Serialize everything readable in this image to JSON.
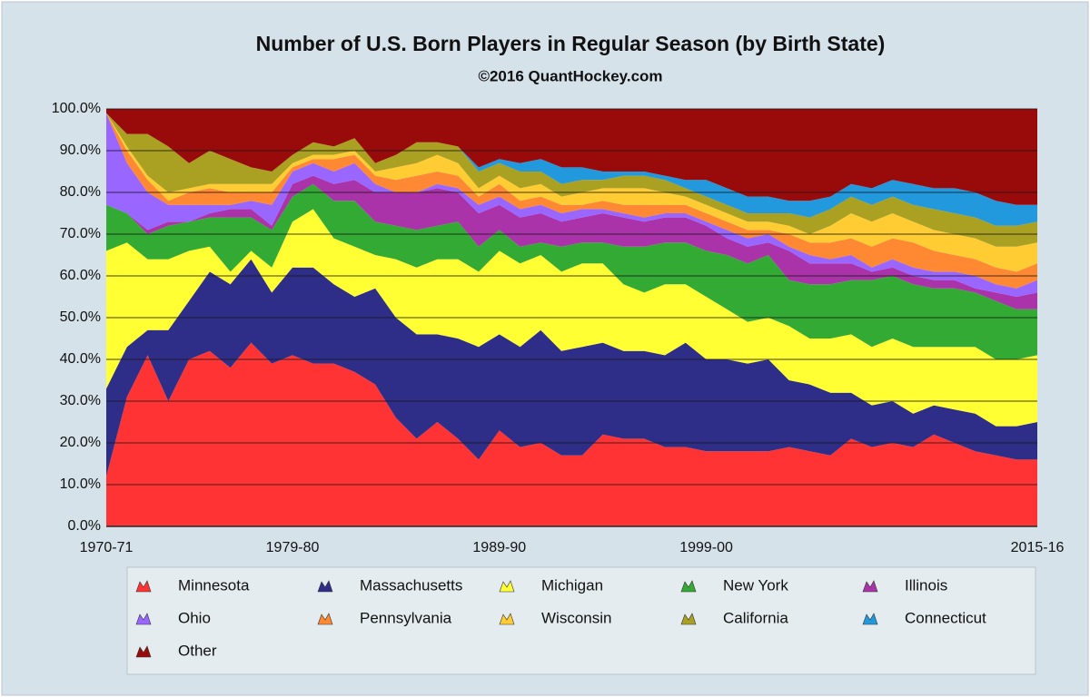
{
  "chart_data": {
    "type": "stacked-area",
    "title": "Number of U.S. Born Players in Regular Season (by Birth State)",
    "subtitle": "©2016 QuantHockey.com",
    "categories": [
      "1970-71",
      null,
      null,
      null,
      null,
      null,
      null,
      null,
      null,
      "1979-80",
      null,
      null,
      null,
      null,
      null,
      null,
      null,
      null,
      null,
      "1989-90",
      null,
      null,
      null,
      null,
      null,
      null,
      null,
      null,
      null,
      "1999-00",
      null,
      null,
      null,
      null,
      null,
      null,
      null,
      null,
      null,
      null,
      null,
      null,
      null,
      null,
      null,
      "2015-16"
    ],
    "ylim": [
      0,
      100
    ],
    "yticks": [
      {
        "value": 0,
        "label": "0.0%"
      },
      {
        "value": 10,
        "label": "10.0%"
      },
      {
        "value": 20,
        "label": "20.0%"
      },
      {
        "value": 30,
        "label": "30.0%"
      },
      {
        "value": 40,
        "label": "40.0%"
      },
      {
        "value": 50,
        "label": "50.0%"
      },
      {
        "value": 60,
        "label": "60.0%"
      },
      {
        "value": 70,
        "label": "70.0%"
      },
      {
        "value": 80,
        "label": "80.0%"
      },
      {
        "value": 90,
        "label": "90.0%"
      },
      {
        "value": 100,
        "label": "100.0%"
      }
    ],
    "grid": true,
    "series": [
      {
        "name": "Minnesota",
        "color": "#ff3333",
        "values": [
          12,
          31,
          41,
          30,
          40,
          42,
          38,
          44,
          39,
          41,
          39,
          39,
          37,
          34,
          26,
          21,
          25,
          21,
          16,
          23,
          19,
          20,
          17,
          17,
          22,
          21,
          21,
          19,
          19,
          18,
          18,
          18,
          18,
          19,
          18,
          17,
          21,
          19,
          20,
          19,
          22,
          20,
          18,
          17,
          16,
          16
        ]
      },
      {
        "name": "Massachusetts",
        "color": "#2e2e88",
        "values": [
          21,
          12,
          6,
          17,
          14,
          19,
          20,
          20,
          17,
          21,
          23,
          19,
          18,
          23,
          24,
          25,
          21,
          24,
          27,
          23,
          24,
          27,
          25,
          26,
          22,
          21,
          21,
          22,
          25,
          22,
          22,
          21,
          22,
          16,
          16,
          15,
          11,
          10,
          10,
          8,
          7,
          8,
          9,
          7,
          8,
          9
        ]
      },
      {
        "name": "Michigan",
        "color": "#ffff33",
        "values": [
          33,
          25,
          17,
          17,
          12,
          6,
          3,
          2,
          6,
          11,
          14,
          11,
          12,
          8,
          14,
          16,
          18,
          19,
          18,
          20,
          20,
          18,
          19,
          20,
          19,
          16,
          14,
          17,
          14,
          15,
          12,
          10,
          10,
          13,
          11,
          13,
          14,
          14,
          15,
          16,
          14,
          15,
          16,
          16,
          16,
          16
        ]
      },
      {
        "name": "New York",
        "color": "#33aa33",
        "values": [
          11,
          7,
          6,
          8,
          7,
          7,
          13,
          8,
          9,
          6,
          6,
          9,
          11,
          8,
          8,
          9,
          8,
          9,
          6,
          5,
          4,
          3,
          6,
          5,
          5,
          9,
          11,
          10,
          10,
          11,
          13,
          14,
          15,
          11,
          13,
          13,
          13,
          16,
          15,
          15,
          14,
          14,
          13,
          14,
          12,
          11
        ]
      },
      {
        "name": "Illinois",
        "color": "#aa33aa",
        "values": [
          0,
          0,
          1,
          1,
          0,
          1,
          2,
          2,
          1,
          3,
          2,
          4,
          5,
          7,
          8,
          9,
          9,
          7,
          8,
          6,
          7,
          7,
          6,
          6,
          7,
          7,
          6,
          6,
          6,
          6,
          4,
          4,
          3,
          7,
          5,
          5,
          4,
          2,
          2,
          2,
          2,
          2,
          1,
          2,
          3,
          4
        ]
      },
      {
        "name": "Ohio",
        "color": "#9966ff",
        "values": [
          22,
          12,
          9,
          4,
          4,
          2,
          1,
          2,
          5,
          3,
          3,
          3,
          4,
          2,
          0,
          0,
          1,
          1,
          2,
          2,
          2,
          2,
          2,
          2,
          1,
          1,
          1,
          1,
          1,
          1,
          2,
          2,
          2,
          1,
          2,
          1,
          2,
          1,
          2,
          2,
          2,
          2,
          3,
          2,
          2,
          3
        ]
      },
      {
        "name": "Pennsylvania",
        "color": "#ff8833",
        "values": [
          0,
          3,
          3,
          1,
          3,
          4,
          3,
          2,
          3,
          1,
          1,
          3,
          2,
          2,
          3,
          4,
          3,
          3,
          2,
          3,
          2,
          2,
          2,
          1,
          2,
          2,
          3,
          2,
          2,
          2,
          2,
          2,
          1,
          3,
          3,
          4,
          4,
          5,
          5,
          6,
          5,
          4,
          4,
          4,
          4,
          4
        ]
      },
      {
        "name": "Wisconsin",
        "color": "#ffcc33",
        "values": [
          0,
          1,
          1,
          2,
          1,
          1,
          2,
          2,
          2,
          1,
          1,
          1,
          1,
          1,
          3,
          3,
          4,
          3,
          2,
          2,
          3,
          3,
          2,
          3,
          3,
          4,
          4,
          3,
          2,
          2,
          2,
          2,
          2,
          2,
          2,
          4,
          6,
          6,
          6,
          5,
          5,
          5,
          5,
          5,
          6,
          5
        ]
      },
      {
        "name": "California",
        "color": "#aaa022",
        "values": [
          0,
          3,
          10,
          11,
          6,
          8,
          6,
          4,
          3,
          2,
          3,
          2,
          3,
          2,
          3,
          5,
          3,
          4,
          4,
          3,
          4,
          3,
          3,
          3,
          2,
          3,
          3,
          3,
          2,
          2,
          2,
          2,
          2,
          3,
          4,
          4,
          4,
          4,
          4,
          4,
          5,
          5,
          5,
          5,
          5,
          5
        ]
      },
      {
        "name": "Connecticut",
        "color": "#2299dd",
        "values": [
          0,
          0,
          0,
          0,
          0,
          0,
          0,
          0,
          0,
          0,
          0,
          0,
          0,
          0,
          0,
          0,
          0,
          0,
          1,
          1,
          2,
          3,
          4,
          3,
          2,
          1,
          1,
          1,
          2,
          4,
          4,
          4,
          4,
          3,
          4,
          3,
          3,
          4,
          4,
          5,
          5,
          6,
          6,
          6,
          5,
          4
        ]
      },
      {
        "name": "Other",
        "color": "#990a0a",
        "values": [
          1,
          6,
          6,
          9,
          13,
          10,
          12,
          14,
          15,
          11,
          8,
          9,
          7,
          13,
          11,
          8,
          8,
          9,
          14,
          12,
          13,
          12,
          14,
          14,
          15,
          15,
          15,
          16,
          17,
          17,
          19,
          21,
          21,
          22,
          22,
          21,
          18,
          19,
          17,
          18,
          19,
          19,
          20,
          22,
          23,
          23
        ]
      }
    ]
  }
}
